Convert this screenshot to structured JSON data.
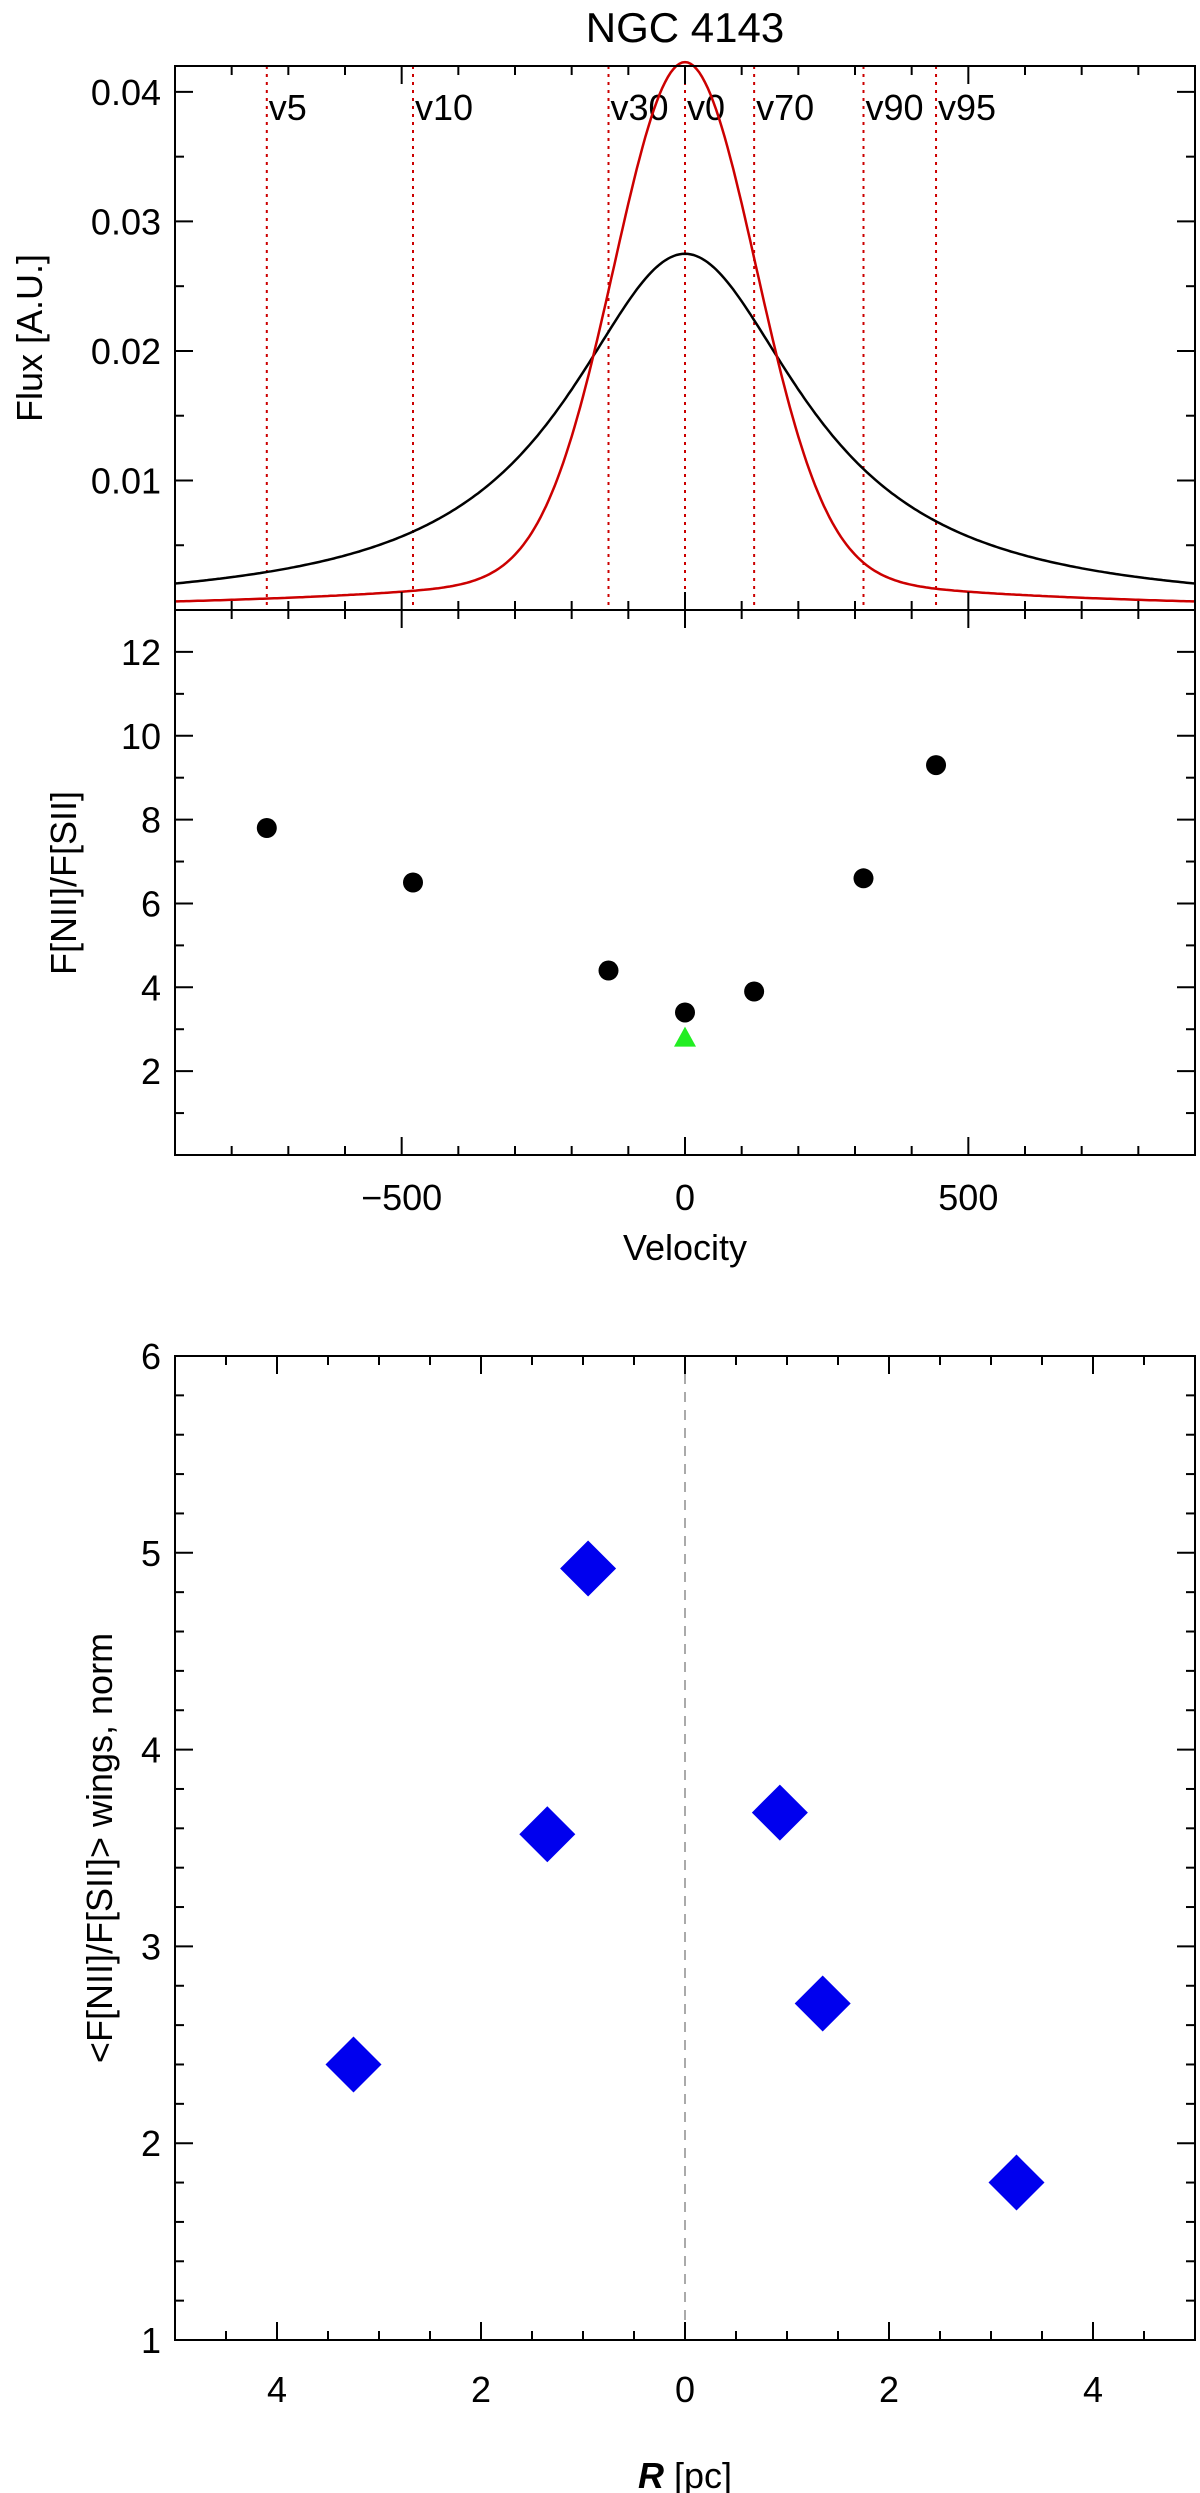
{
  "chart_data": [
    {
      "type": "line",
      "title": "NGC 4143",
      "xlabel": "",
      "ylabel": "Flux [A.U.]",
      "xlim": [
        -900,
        900
      ],
      "ylim": [
        0,
        0.042
      ],
      "y_ticks": [
        "0.01",
        "0.02",
        "0.03",
        "0.04"
      ],
      "grid": false,
      "series": [
        {
          "color": "#000000",
          "model": "lorentzian",
          "center": 0,
          "amplitude": 0.0275,
          "hwhm": 255
        },
        {
          "color": "#cc0000",
          "model": "gaussian",
          "center": 0,
          "amplitude": 0.0395,
          "sigma": 125,
          "wing_amplitude": 0.0028,
          "wing_hwhm": 500
        }
      ],
      "markers": [
        {
          "label": "v5",
          "x": -738
        },
        {
          "label": "v10",
          "x": -480
        },
        {
          "label": "v30",
          "x": -135
        },
        {
          "label": "v0",
          "x": 0
        },
        {
          "label": "v70",
          "x": 122
        },
        {
          "label": "v90",
          "x": 315
        },
        {
          "label": "v95",
          "x": 443
        }
      ],
      "marker_color": "#cc0000"
    },
    {
      "type": "scatter",
      "xlabel": "Velocity",
      "ylabel": "F[NII]/F[SII]",
      "xlim": [
        -900,
        900
      ],
      "ylim": [
        0,
        13
      ],
      "x_ticks": [
        "−500",
        "0",
        "500"
      ],
      "y_ticks": [
        "2",
        "4",
        "6",
        "8",
        "10",
        "12"
      ],
      "series": [
        {
          "color": "#000000",
          "marker": "circle",
          "points": [
            {
              "x": -738,
              "y": 7.8
            },
            {
              "x": -480,
              "y": 6.5
            },
            {
              "x": -135,
              "y": 4.4
            },
            {
              "x": 0,
              "y": 3.4
            },
            {
              "x": 122,
              "y": 3.9
            },
            {
              "x": 315,
              "y": 6.6
            },
            {
              "x": 443,
              "y": 9.3
            }
          ]
        },
        {
          "color": "#22ee22",
          "marker": "triangle",
          "points": [
            {
              "x": 0,
              "y": 2.8
            }
          ]
        }
      ]
    },
    {
      "type": "scatter",
      "xlabel_bold": "R",
      "xlabel_rest": " [pc]",
      "ylabel": "<F[NII]/F[SII]> wings, norm",
      "xlim": [
        -5,
        5
      ],
      "x_axis_reversed_labels": true,
      "ylim": [
        1,
        6
      ],
      "x_ticks": [
        {
          "at": -4,
          "label": "4"
        },
        {
          "at": -2,
          "label": "2"
        },
        {
          "at": 0,
          "label": "0"
        },
        {
          "at": 2,
          "label": "2"
        },
        {
          "at": 4,
          "label": "4"
        }
      ],
      "y_ticks": [
        "1",
        "2",
        "3",
        "4",
        "5",
        "6"
      ],
      "zero_line": {
        "x": 0,
        "style": "dashed",
        "color": "#aaaaaa"
      },
      "series": [
        {
          "color": "#0000ee",
          "marker": "diamond",
          "points": [
            {
              "x": -3.25,
              "y": 2.4
            },
            {
              "x": -1.35,
              "y": 3.57
            },
            {
              "x": -0.95,
              "y": 4.92
            },
            {
              "x": 0.93,
              "y": 3.68
            },
            {
              "x": 1.35,
              "y": 2.71
            },
            {
              "x": 3.25,
              "y": 1.8
            }
          ]
        }
      ]
    }
  ]
}
